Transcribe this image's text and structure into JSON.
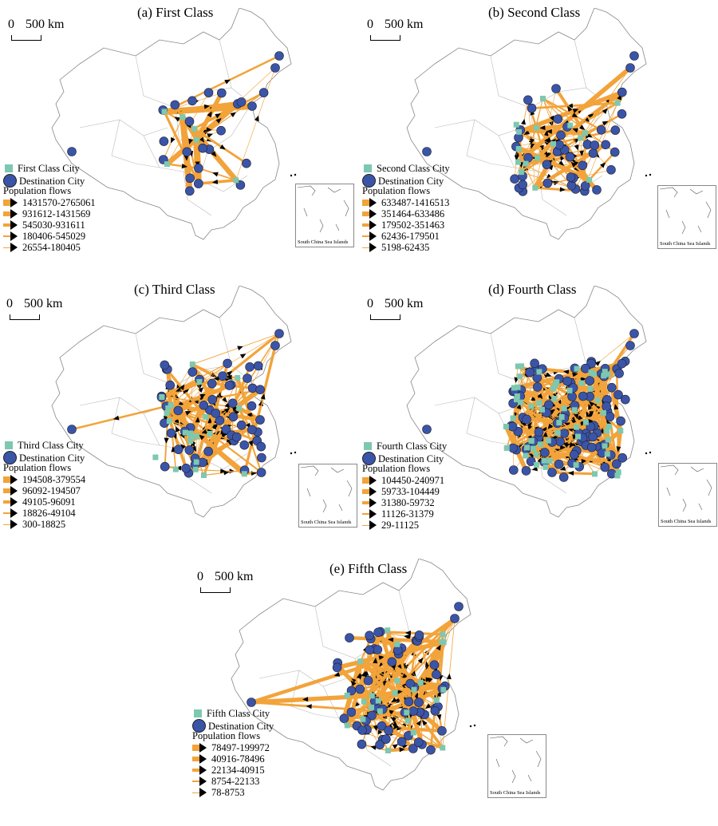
{
  "scale_bar": {
    "zero": "0",
    "distance": "500 km"
  },
  "inset_caption": "South China Sea Islands",
  "colors": {
    "flow": "#f2a33a",
    "arrow": "#000000",
    "origin_city": "#7dc8b0",
    "destination_city": "#3a55a8",
    "border": "#888888"
  },
  "icons": {
    "origin": "square",
    "destination": "circle",
    "flow": "arrow"
  },
  "panels": [
    {
      "id": "a",
      "title": "(a) First Class",
      "legend": {
        "origin": "First Class City",
        "destination": "Destination City",
        "flows_title": "Population flows",
        "ranges": [
          "1431570-2765061",
          "931612-1431569",
          "545030-931611",
          "180406-545029",
          "26554-180405"
        ]
      }
    },
    {
      "id": "b",
      "title": "(b) Second Class",
      "legend": {
        "origin": "Second Class City",
        "destination": "Destination City",
        "flows_title": "Population flows",
        "ranges": [
          "633487-1416513",
          "351464-633486",
          "179502-351463",
          "62436-179501",
          "5198-62435"
        ]
      }
    },
    {
      "id": "c",
      "title": "(c) Third Class",
      "legend": {
        "origin": "Third Class City",
        "destination": "Destination City",
        "flows_title": "Population flows",
        "ranges": [
          "194508-379554",
          "96092-194507",
          "49105-96091",
          "18826-49104",
          "300-18825"
        ]
      }
    },
    {
      "id": "d",
      "title": "(d) Fourth Class",
      "legend": {
        "origin": "Fourth Class City",
        "destination": "Destination City",
        "flows_title": "Population flows",
        "ranges": [
          "104450-240971",
          "59733-104449",
          "31380-59732",
          "11126-31379",
          "29-11125"
        ]
      }
    },
    {
      "id": "e",
      "title": "(e) Fifth Class",
      "legend": {
        "origin": "Fifth Class City",
        "destination": "Destination City",
        "flows_title": "Population flows",
        "ranges": [
          "78497-199972",
          "40916-78496",
          "22134-40915",
          "8754-22133",
          "78-8753"
        ]
      }
    }
  ]
}
